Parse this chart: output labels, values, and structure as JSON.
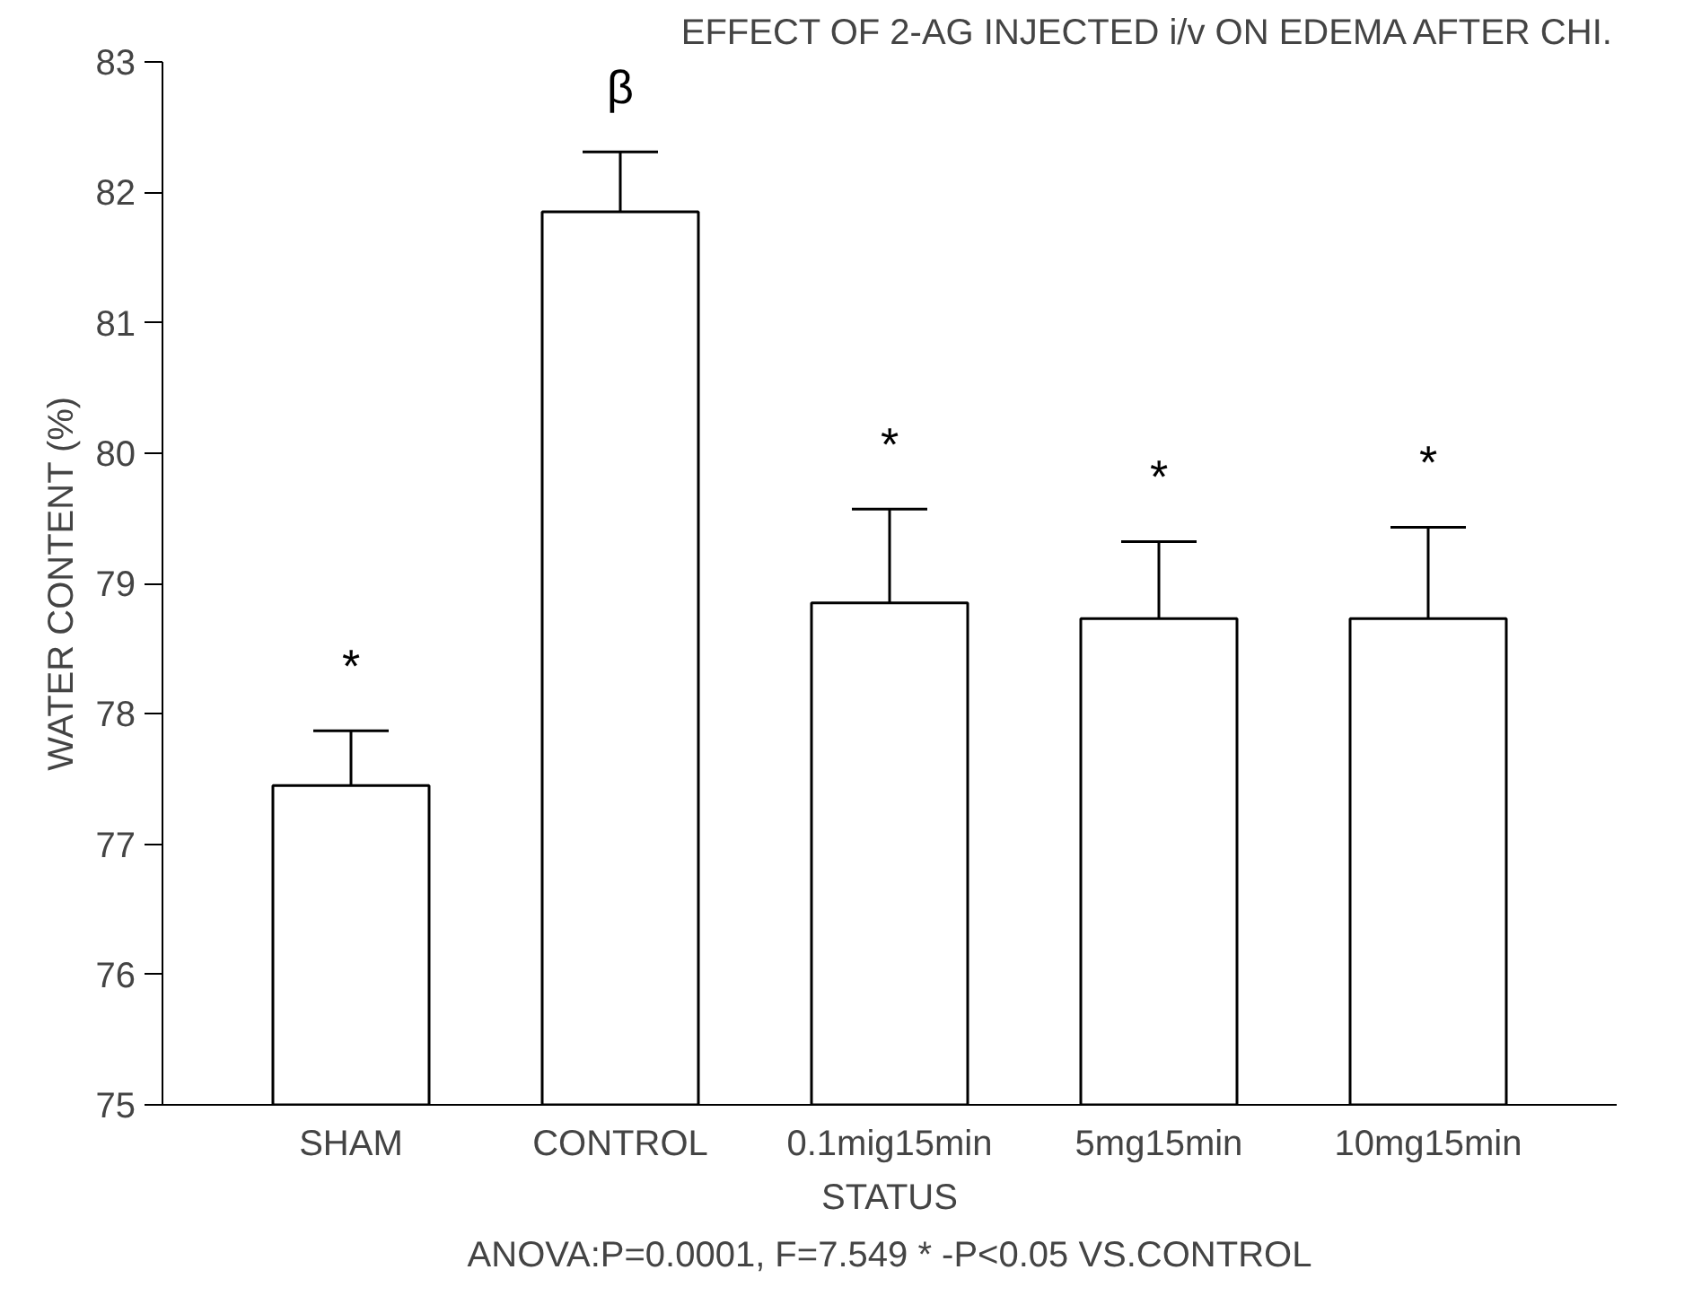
{
  "chart_data": {
    "type": "bar",
    "title": "EFFECT OF 2-AG INJECTED i/v ON EDEMA AFTER CHI.",
    "xlabel": "STATUS",
    "ylabel": "WATER CONTENT (%)",
    "categories": [
      "SHAM",
      "CONTROL",
      "0.1mig15min",
      "5mg15min",
      "10mg15min"
    ],
    "values": [
      77.45,
      81.85,
      78.85,
      78.73,
      78.73
    ],
    "errors": [
      [
        77.45,
        77.87
      ],
      [
        81.85,
        82.31
      ],
      [
        78.85,
        79.57
      ],
      [
        78.73,
        79.32
      ],
      [
        78.73,
        79.43
      ]
    ],
    "color": "#ffffff",
    "ylim": [
      75,
      83
    ],
    "yticks": [
      75,
      76,
      77,
      78,
      79,
      80,
      81,
      82,
      83
    ],
    "grid": false,
    "legend": false,
    "annotations": [
      "*",
      "β",
      "*",
      "*",
      "*",
      "ANOVA:P=0.0001, F=7.549 * -P<0.05 VS.CONTROL"
    ]
  }
}
